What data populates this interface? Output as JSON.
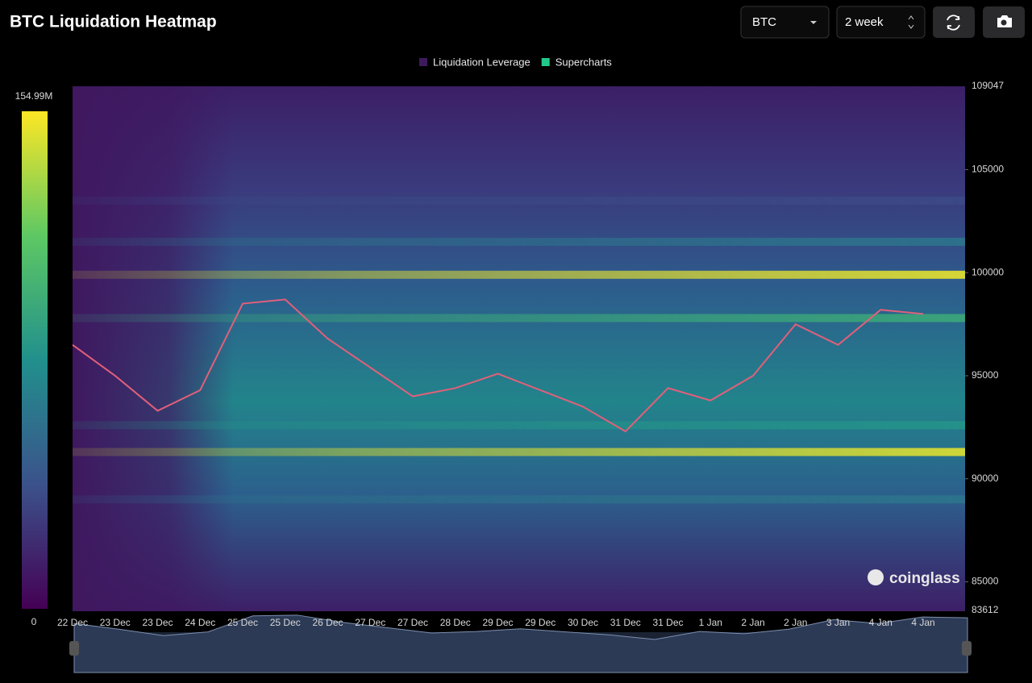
{
  "header": {
    "title": "BTC Liquidation Heatmap",
    "symbol": "BTC",
    "range": "2 week",
    "watermark": "coinglass"
  },
  "chart_data": {
    "type": "heatmap",
    "legend": [
      "Liquidation Leverage",
      "Supercharts"
    ],
    "legend_colors": [
      "#3d1a5c",
      "#22c98a"
    ],
    "categories": [
      "22 Dec",
      "23 Dec",
      "23 Dec",
      "24 Dec",
      "25 Dec",
      "25 Dec",
      "26 Dec",
      "27 Dec",
      "27 Dec",
      "28 Dec",
      "29 Dec",
      "29 Dec",
      "30 Dec",
      "31 Dec",
      "31 Dec",
      "1 Jan",
      "2 Jan",
      "2 Jan",
      "3 Jan",
      "4 Jan",
      "4 Jan"
    ],
    "series": [
      {
        "name": "Supercharts",
        "color": "#e0607a",
        "values": [
          96500,
          95000,
          93300,
          94300,
          98500,
          98700,
          96800,
          95400,
          94000,
          94400,
          95100,
          94300,
          93500,
          92300,
          94400,
          93800,
          95000,
          97500,
          96500,
          98200,
          98000
        ]
      }
    ],
    "levels": {
      "prices": [
        99900,
        91300,
        92600,
        97800,
        101500,
        103500,
        89000
      ],
      "values": [
        150,
        148,
        80,
        95,
        60,
        35,
        60
      ]
    },
    "ylim": [
      83612,
      109047
    ],
    "yticks": [
      85000,
      90000,
      95000,
      100000,
      105000
    ],
    "clim": [
      0,
      {
        "value": 154.99,
        "label": "154.99M"
      }
    ]
  }
}
